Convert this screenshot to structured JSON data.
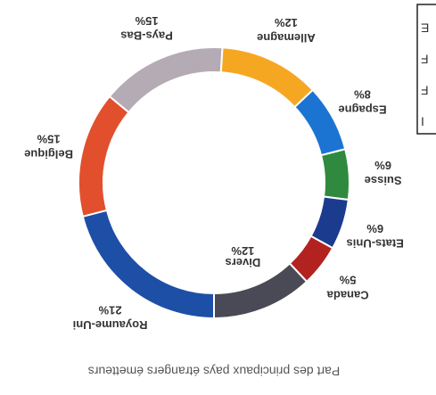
{
  "chart_data": {
    "type": "donut",
    "title": "Part des principaux pays étrangers émetteurs",
    "categories": [
      "Royaume-Uni",
      "Belgique",
      "Pays-Bas",
      "Allemagne",
      "Espagne",
      "Suisse",
      "Etats-Unis",
      "Canada",
      "Divers"
    ],
    "values": [
      21,
      15,
      15,
      12,
      8,
      6,
      6,
      5,
      12
    ],
    "value_labels": [
      "21%",
      "15%",
      "15%",
      "12%",
      "8%",
      "6%",
      "6%",
      "5%",
      "12%"
    ],
    "colors": [
      "#1d4fa6",
      "#e24f2d",
      "#b4abb4",
      "#f6a722",
      "#1c74d2",
      "#2f8a40",
      "#1b3b8e",
      "#b2221f",
      "#4a4a56"
    ],
    "inside_label": "Divers",
    "legend_fragments": [
      "E",
      "F",
      "F",
      "I"
    ]
  }
}
